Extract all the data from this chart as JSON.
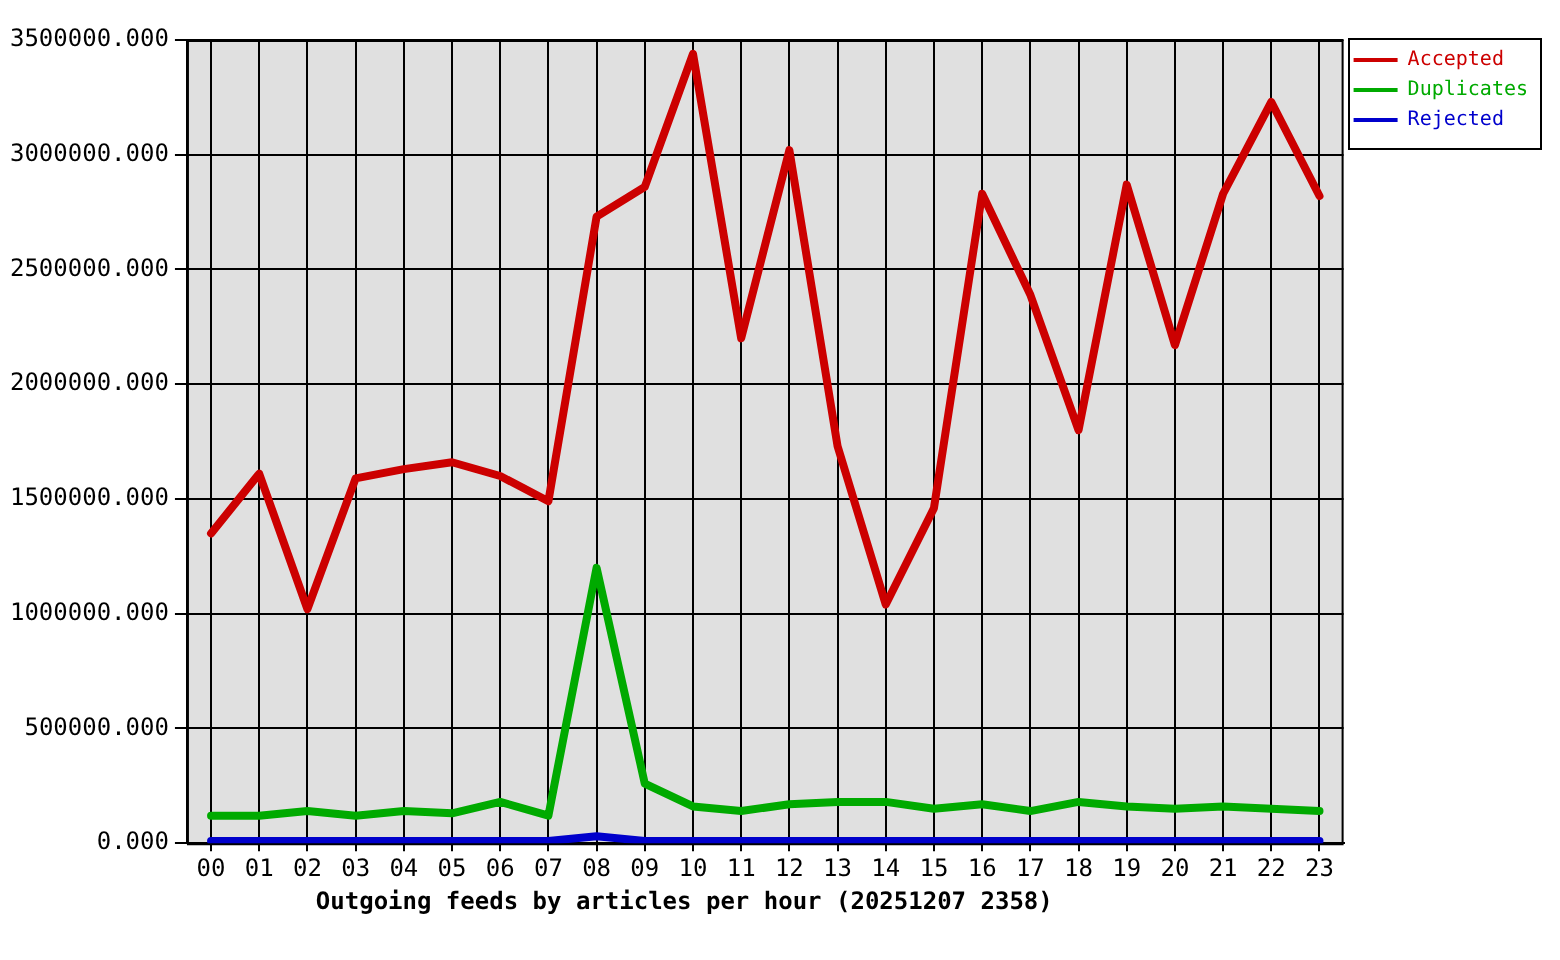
{
  "chart_data": {
    "type": "line",
    "xlabel": "Outgoing feeds by articles per hour (20251207 2358)",
    "categories": [
      "00",
      "01",
      "02",
      "03",
      "04",
      "05",
      "06",
      "07",
      "08",
      "09",
      "10",
      "11",
      "12",
      "13",
      "14",
      "15",
      "16",
      "17",
      "18",
      "19",
      "20",
      "21",
      "22",
      "23"
    ],
    "series": [
      {
        "name": "Accepted",
        "color": "#cc0000",
        "values": [
          1350000,
          1610000,
          1020000,
          1590000,
          1630000,
          1660000,
          1600000,
          1490000,
          2730000,
          2860000,
          3440000,
          2200000,
          3020000,
          1730000,
          1040000,
          1460000,
          2830000,
          2390000,
          1800000,
          2870000,
          2170000,
          2830000,
          3230000,
          2820000
        ]
      },
      {
        "name": "Duplicates",
        "color": "#00aa00",
        "values": [
          120000,
          120000,
          140000,
          120000,
          140000,
          130000,
          180000,
          120000,
          1200000,
          260000,
          160000,
          140000,
          170000,
          180000,
          180000,
          150000,
          170000,
          140000,
          180000,
          160000,
          150000,
          160000,
          150000,
          140000
        ]
      },
      {
        "name": "Rejected",
        "color": "#0000cc",
        "values": [
          10000,
          10000,
          10000,
          10000,
          10000,
          10000,
          10000,
          10000,
          30000,
          10000,
          10000,
          10000,
          10000,
          10000,
          10000,
          10000,
          10000,
          10000,
          10000,
          10000,
          10000,
          10000,
          10000,
          10000
        ]
      }
    ],
    "ylim": [
      0,
      3500000
    ],
    "yticks": [
      {
        "value": 0,
        "label": "0.000"
      },
      {
        "value": 500000,
        "label": "500000.000"
      },
      {
        "value": 1000000,
        "label": "1000000.000"
      },
      {
        "value": 1500000,
        "label": "1500000.000"
      },
      {
        "value": 2000000,
        "label": "2000000.000"
      },
      {
        "value": 2500000,
        "label": "2500000.000"
      },
      {
        "value": 3000000,
        "label": "3000000.000"
      },
      {
        "value": 3500000,
        "label": "3500000.000"
      }
    ],
    "grid": true,
    "legend": "top right",
    "line_style": "solid"
  }
}
